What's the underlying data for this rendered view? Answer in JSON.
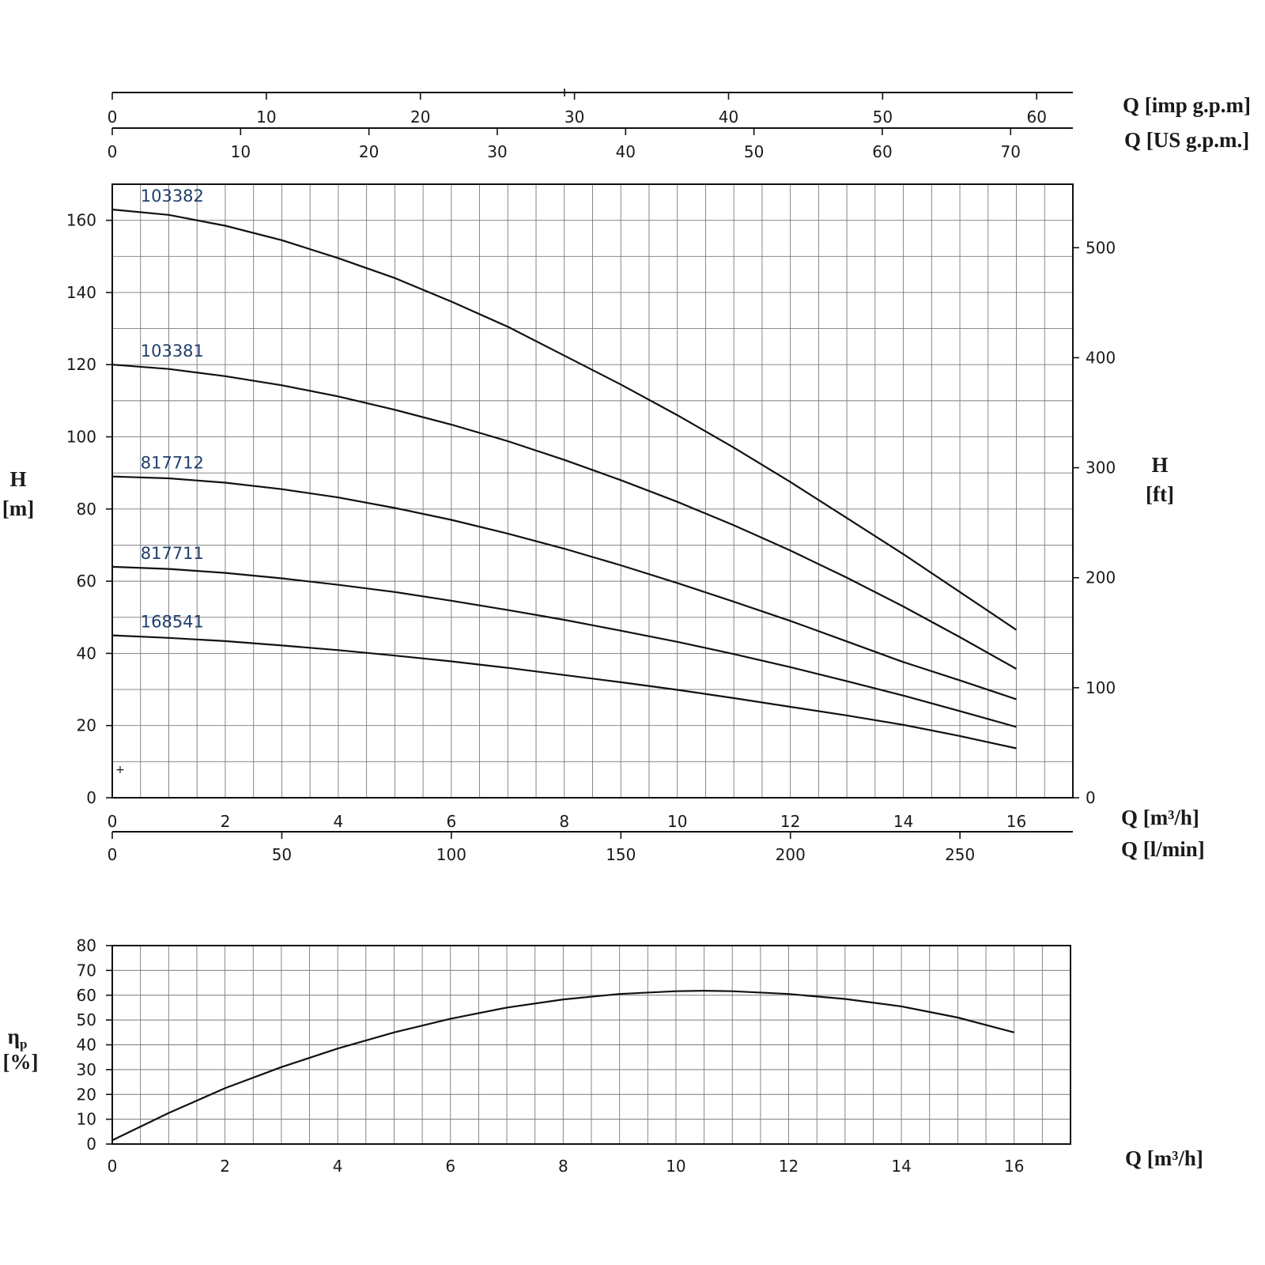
{
  "chart_data": [
    {
      "type": "line",
      "name": "head-curves",
      "xlabel": "Q [m³/h]",
      "ylabel": "H [m]",
      "y2label": "H [ft]",
      "xlim": [
        0,
        17
      ],
      "ylim": [
        0,
        170
      ],
      "y2lim": [
        0,
        557.7
      ],
      "x_ticks": [
        0,
        2,
        4,
        6,
        8,
        10,
        12,
        14,
        16
      ],
      "y_ticks": [
        0,
        20,
        40,
        60,
        80,
        100,
        120,
        140,
        160
      ],
      "y2_ticks": [
        0,
        100,
        200,
        300,
        400,
        500
      ],
      "grid": true,
      "aux_x_axes": [
        {
          "label": "Q [imp g.p.m]",
          "position": "top",
          "lim": [
            0,
            62.35
          ],
          "ticks": [
            0,
            10,
            20,
            30,
            40,
            50,
            60
          ]
        },
        {
          "label": "Q [US g.p.m.]",
          "position": "top",
          "lim": [
            0,
            74.85
          ],
          "ticks": [
            0,
            10,
            20,
            30,
            40,
            50,
            60,
            70
          ]
        },
        {
          "label": "Q [l/min]",
          "position": "bottom",
          "lim": [
            0,
            283.3
          ],
          "ticks": [
            0,
            50,
            100,
            150,
            200,
            250
          ]
        }
      ],
      "series": [
        {
          "name": "103382",
          "x": [
            0,
            1,
            2,
            3,
            4,
            5,
            6,
            7,
            8,
            9,
            10,
            11,
            12,
            13,
            14,
            15,
            16
          ],
          "values": [
            163,
            161.5,
            158.5,
            154.5,
            149.5,
            144,
            137.5,
            130.5,
            122.5,
            114.5,
            106,
            97,
            87.5,
            77.5,
            67.5,
            57,
            46.5
          ]
        },
        {
          "name": "103381",
          "x": [
            0,
            1,
            2,
            3,
            4,
            5,
            6,
            7,
            8,
            9,
            10,
            11,
            12,
            13,
            14,
            15,
            16
          ],
          "values": [
            120,
            118.8,
            116.8,
            114.3,
            111.2,
            107.5,
            103.4,
            98.8,
            93.6,
            88,
            82,
            75.5,
            68.5,
            61,
            53,
            44.5,
            35.7
          ]
        },
        {
          "name": "817712",
          "x": [
            0,
            1,
            2,
            3,
            4,
            5,
            6,
            7,
            8,
            9,
            10,
            11,
            12,
            13,
            14,
            15,
            16
          ],
          "values": [
            89,
            88.5,
            87.3,
            85.5,
            83.2,
            80.3,
            77,
            73.2,
            69,
            64.4,
            59.5,
            54.3,
            49,
            43.3,
            37.6,
            32.5,
            27.3
          ]
        },
        {
          "name": "817711",
          "x": [
            0,
            1,
            2,
            3,
            4,
            5,
            6,
            7,
            8,
            9,
            10,
            11,
            12,
            13,
            14,
            15,
            16
          ],
          "values": [
            64,
            63.4,
            62.3,
            60.8,
            59,
            57,
            54.6,
            52,
            49.3,
            46.3,
            43.2,
            39.8,
            36.2,
            32.3,
            28.3,
            24,
            19.6
          ]
        },
        {
          "name": "168541",
          "x": [
            0,
            1,
            2,
            3,
            4,
            5,
            6,
            7,
            8,
            9,
            10,
            11,
            12,
            13,
            14,
            15,
            16
          ],
          "values": [
            45,
            44.3,
            43.4,
            42.2,
            40.9,
            39.4,
            37.8,
            36,
            34,
            32,
            29.9,
            27.6,
            25.2,
            22.8,
            20.2,
            17.1,
            13.7
          ]
        }
      ]
    },
    {
      "type": "line",
      "name": "efficiency-curve",
      "xlabel": "Q [m³/h]",
      "ylabel": "ηp [%]",
      "xlim": [
        0,
        17
      ],
      "ylim": [
        0,
        80
      ],
      "x_ticks": [
        0,
        2,
        4,
        6,
        8,
        10,
        12,
        14,
        16
      ],
      "y_ticks": [
        0,
        10,
        20,
        30,
        40,
        50,
        60,
        70,
        80
      ],
      "grid": true,
      "series": [
        {
          "x": [
            0,
            1,
            2,
            3,
            4,
            5,
            6,
            7,
            8,
            9,
            10,
            10.5,
            11,
            12,
            13,
            14,
            15,
            16
          ],
          "values": [
            1.5,
            12.5,
            22.5,
            31,
            38.5,
            45,
            50.5,
            55,
            58.3,
            60.5,
            61.6,
            61.8,
            61.6,
            60.5,
            58.5,
            55.5,
            51,
            45
          ]
        }
      ]
    }
  ],
  "labels": {
    "h_m": {
      "line1": "H",
      "line2": "[m]"
    },
    "h_ft": {
      "line1": "H",
      "line2": "[ft]"
    },
    "imp_gpm": "Q [imp g.p.m]",
    "us_gpm": "Q [US g.p.m.]",
    "q_m3h": "Q [m³/h]",
    "q_lmin": "Q [l/min]",
    "eta": {
      "symbol": "η",
      "sub": "p",
      "unit": "[%]"
    },
    "q_m3h_bottom": "Q [m³/h]",
    "marker": "+"
  }
}
